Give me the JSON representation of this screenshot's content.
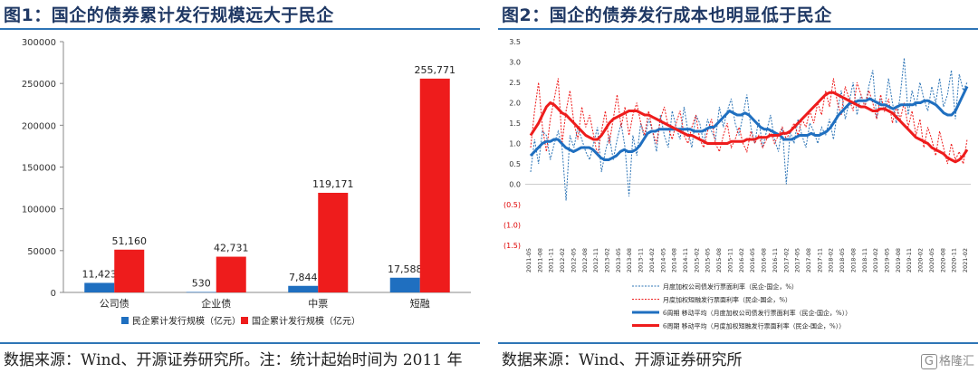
{
  "left": {
    "title": "图1：国企的债券累计发行规模远大于民企",
    "source": "数据来源：Wind、开源证券研究所。注：统计起始时间为 2011 年",
    "chart_data": {
      "type": "bar",
      "categories": [
        "公司债",
        "企业债",
        "中票",
        "短融"
      ],
      "series": [
        {
          "name": "民企累计发行规模（亿元）",
          "color": "#1f6fc0",
          "values": [
            11423,
            530,
            7844,
            17588
          ],
          "labels": [
            "11,423",
            "530",
            "7,844",
            "17,588"
          ]
        },
        {
          "name": "国企累计发行规模（亿元）",
          "color": "#ee1c1c",
          "values": [
            51160,
            42731,
            119171,
            255771
          ],
          "labels": [
            "51,160",
            "42,731",
            "119,171",
            "255,771"
          ]
        }
      ],
      "ylim": [
        0,
        300000
      ],
      "yticks": [
        0,
        50000,
        100000,
        150000,
        200000,
        250000,
        300000
      ],
      "ytick_labels": [
        "0",
        "50000",
        "100000",
        "150000",
        "200000",
        "250000",
        "300000"
      ],
      "legend": "bottom"
    }
  },
  "right": {
    "title": "图2：国企的债券发行成本也明显低于民企",
    "source": "数据来源：Wind、开源证券研究所",
    "chart_data": {
      "type": "line",
      "ylim": [
        -1.5,
        3.5
      ],
      "yticks": [
        3.5,
        3.0,
        2.5,
        2.0,
        1.5,
        1.0,
        0.5,
        0.0,
        -0.5,
        -1.0,
        -1.5
      ],
      "ytick_labels": [
        "3.5",
        "3.0",
        "2.5",
        "2.0",
        "1.5",
        "1.0",
        "0.5",
        "0.0",
        "(0.5)",
        "(1.0)",
        "(1.5)"
      ],
      "xtick_labels": [
        "2011-05",
        "2011-08",
        "2011-11",
        "2012-02",
        "2012-05",
        "2012-08",
        "2012-11",
        "2013-02",
        "2013-05",
        "2013-08",
        "2013-11",
        "2014-02",
        "2014-05",
        "2014-08",
        "2014-11",
        "2015-02",
        "2015-05",
        "2015-08",
        "2015-11",
        "2016-02",
        "2016-05",
        "2016-08",
        "2016-11",
        "2017-02",
        "2017-05",
        "2017-08",
        "2017-11",
        "2018-02",
        "2018-05",
        "2018-08",
        "2018-11",
        "2019-02",
        "2019-05",
        "2019-08",
        "2019-11",
        "2020-02",
        "2020-05",
        "2020-08",
        "2020-11",
        "2021-02"
      ],
      "series": [
        {
          "name": "月度加权公司债发行票面利率（民企-国企，%）",
          "color": "#2e75b6",
          "style": "dashed-thin",
          "values": [
            0.3,
            1.1,
            0.5,
            1.3,
            1.2,
            0.6,
            1.0,
            1.3,
            0.9,
            -0.4,
            1.2,
            0.9,
            1.4,
            1.1,
            0.8,
            0.6,
            1.0,
            1.4,
            0.3,
            0.8,
            1.2,
            0.6,
            1.1,
            1.5,
            0.9,
            -0.3,
            1.2,
            0.7,
            1.5,
            1.1,
            1.6,
            1.3,
            0.8,
            1.7,
            1.2,
            0.9,
            1.8,
            1.4,
            1.1,
            1.9,
            1.3,
            0.9,
            1.7,
            1.5,
            1.0,
            1.6,
            1.3,
            1.1,
            1.9,
            1.4,
            1.8,
            2.1,
            1.5,
            1.2,
            1.7,
            2.2,
            1.4,
            1.0,
            1.6,
            0.9,
            1.3,
            1.7,
            1.1,
            0.8,
            1.4,
            0.0,
            1.3,
            1.0,
            1.6,
            1.2,
            0.9,
            1.5,
            1.3,
            1.0,
            1.4,
            1.2,
            1.6,
            1.1,
            1.8,
            2.3,
            1.6,
            2.0,
            2.5,
            1.7,
            2.2,
            1.9,
            2.4,
            2.8,
            1.6,
            2.1,
            1.8,
            2.6,
            2.0,
            1.5,
            2.2,
            3.1,
            1.7,
            2.3,
            1.9,
            2.5,
            2.1,
            1.8,
            2.4,
            2.0,
            2.6,
            1.9,
            2.2,
            2.8,
            1.6,
            2.7,
            2.3,
            2.5
          ]
        },
        {
          "name": "月度加权短融发行票面利率（民企-国企，%）",
          "color": "#ee1c1c",
          "style": "dashed-thin",
          "values": [
            0.9,
            1.8,
            2.5,
            1.4,
            0.8,
            1.6,
            2.1,
            2.6,
            1.0,
            1.8,
            2.3,
            1.5,
            1.1,
            1.9,
            1.4,
            1.7,
            1.2,
            0.7,
            1.3,
            1.8,
            1.0,
            1.6,
            2.2,
            1.4,
            1.9,
            1.2,
            1.7,
            2.0,
            1.5,
            1.2,
            1.8,
            1.3,
            1.0,
            1.6,
            1.9,
            1.4,
            1.1,
            1.5,
            1.8,
            1.2,
            1.0,
            1.4,
            1.7,
            1.1,
            0.9,
            1.3,
            1.6,
            1.0,
            0.8,
            1.2,
            1.5,
            0.9,
            1.1,
            1.4,
            1.0,
            0.8,
            1.3,
            1.0,
            1.2,
            0.9,
            1.1,
            1.3,
            1.0,
            1.2,
            1.4,
            1.1,
            1.3,
            1.5,
            1.2,
            1.6,
            1.4,
            1.8,
            1.5,
            2.0,
            1.7,
            2.3,
            1.9,
            2.6,
            2.0,
            1.7,
            2.4,
            2.1,
            1.8,
            2.5,
            2.2,
            1.9,
            2.3,
            2.0,
            1.6,
            2.2,
            1.8,
            2.1,
            1.5,
            1.9,
            1.6,
            2.0,
            1.4,
            1.8,
            1.2,
            1.6,
            0.9,
            1.4,
            1.1,
            0.7,
            1.3,
            0.9,
            0.5,
            1.0,
            0.6,
            0.8,
            0.5,
            1.1
          ]
        },
        {
          "name": "6周期 移动平均（月度加权公司债发行票面利率（民企-国企，%））",
          "color": "#1f6fc0",
          "style": "solid-thick",
          "values": [
            0.7,
            0.8,
            0.9,
            1.0,
            1.05,
            1.05,
            1.1,
            1.1,
            1.0,
            0.9,
            0.85,
            0.8,
            0.85,
            0.9,
            0.9,
            0.9,
            0.85,
            0.75,
            0.65,
            0.6,
            0.6,
            0.65,
            0.7,
            0.8,
            0.85,
            0.8,
            0.8,
            0.85,
            0.95,
            1.1,
            1.25,
            1.3,
            1.3,
            1.35,
            1.35,
            1.35,
            1.35,
            1.35,
            1.35,
            1.35,
            1.35,
            1.35,
            1.3,
            1.3,
            1.3,
            1.35,
            1.4,
            1.4,
            1.5,
            1.6,
            1.7,
            1.8,
            1.75,
            1.7,
            1.7,
            1.75,
            1.7,
            1.6,
            1.5,
            1.4,
            1.35,
            1.35,
            1.3,
            1.25,
            1.2,
            1.1,
            1.1,
            1.1,
            1.15,
            1.2,
            1.2,
            1.2,
            1.25,
            1.2,
            1.2,
            1.25,
            1.3,
            1.4,
            1.55,
            1.7,
            1.8,
            1.9,
            2.0,
            2.0,
            2.05,
            2.05,
            2.05,
            2.1,
            2.05,
            2.0,
            1.95,
            1.95,
            1.9,
            1.85,
            1.9,
            1.95,
            1.95,
            1.95,
            1.95,
            2.0,
            2.0,
            2.05,
            2.05,
            2.0,
            1.95,
            1.85,
            1.75,
            1.7,
            1.7,
            1.8,
            2.0,
            2.2,
            2.4
          ]
        },
        {
          "name": "6周期 移动平均（月度加权短融发行票面利率（民企-国企，%））",
          "color": "#ee1c1c",
          "style": "solid-thick",
          "values": [
            1.2,
            1.35,
            1.5,
            1.7,
            1.9,
            2.0,
            1.95,
            1.85,
            1.75,
            1.7,
            1.6,
            1.5,
            1.4,
            1.3,
            1.2,
            1.15,
            1.1,
            1.1,
            1.2,
            1.35,
            1.5,
            1.6,
            1.65,
            1.7,
            1.75,
            1.8,
            1.8,
            1.8,
            1.75,
            1.7,
            1.7,
            1.65,
            1.6,
            1.55,
            1.5,
            1.45,
            1.4,
            1.35,
            1.3,
            1.25,
            1.2,
            1.2,
            1.15,
            1.1,
            1.05,
            1.0,
            1.0,
            1.0,
            1.0,
            1.0,
            1.0,
            1.05,
            1.05,
            1.05,
            1.05,
            1.1,
            1.1,
            1.1,
            1.15,
            1.15,
            1.15,
            1.2,
            1.2,
            1.2,
            1.25,
            1.25,
            1.3,
            1.4,
            1.5,
            1.6,
            1.7,
            1.8,
            1.9,
            2.0,
            2.1,
            2.2,
            2.25,
            2.25,
            2.2,
            2.15,
            2.1,
            2.05,
            2.0,
            1.95,
            1.9,
            1.9,
            1.85,
            1.8,
            1.8,
            1.85,
            1.85,
            1.8,
            1.75,
            1.65,
            1.55,
            1.45,
            1.35,
            1.25,
            1.15,
            1.1,
            1.05,
            1.0,
            0.9,
            0.85,
            0.8,
            0.75,
            0.65,
            0.6,
            0.55,
            0.6,
            0.7,
            0.85
          ]
        }
      ],
      "legend": "bottom-center"
    }
  },
  "watermark": {
    "badge": "G",
    "text": "格隆汇"
  }
}
